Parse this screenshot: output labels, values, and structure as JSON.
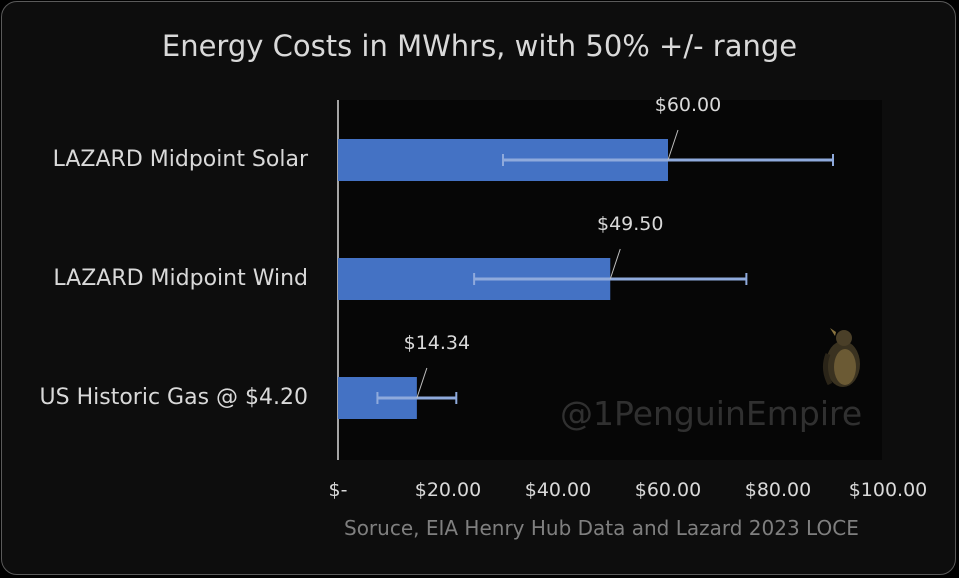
{
  "chart_data": {
    "type": "bar",
    "orientation": "horizontal",
    "title": "Energy Costs in MWhrs, with 50% +/- range",
    "categories": [
      "LAZARD Midpoint Solar",
      "LAZARD Midpoint Wind",
      "US Historic Gas @ $4.20"
    ],
    "series": [
      {
        "values": [
          60.0,
          49.5,
          14.34
        ],
        "data_labels": [
          "$60.00",
          "$49.50",
          "$14.34"
        ],
        "error_low": [
          30.0,
          24.75,
          7.17
        ],
        "error_high": [
          90.0,
          74.25,
          21.51
        ],
        "color": "#4472c4",
        "error_color": "#8faadc"
      }
    ],
    "xlim": [
      0,
      100
    ],
    "xticks": [
      0,
      20,
      40,
      60,
      80,
      100
    ],
    "xtick_labels": [
      "$-",
      "$20.00",
      "$40.00",
      "$60.00",
      "$80.00",
      "$100.00"
    ],
    "grid": false,
    "legend": "none",
    "source_note": "Soruce, EIA Henry Hub Data and Lazard 2023 LOCE",
    "watermark": "@1PenguinEmpire"
  }
}
